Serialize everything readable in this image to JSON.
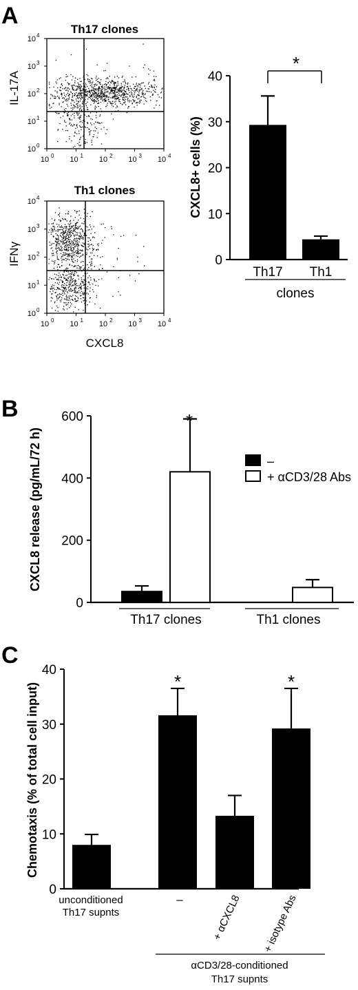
{
  "panels": {
    "A": {
      "letter": "A"
    },
    "B": {
      "letter": "B"
    },
    "C": {
      "letter": "C"
    }
  },
  "flow": {
    "th17": {
      "title": "Th17 clones",
      "ylabel": "IL-17A"
    },
    "th1": {
      "title": "Th1 clones",
      "ylabel": "IFNγ"
    },
    "xlabel": "CXCL8",
    "ticks": {
      "bases": [
        "10",
        "10",
        "10",
        "10",
        "10"
      ],
      "exps": [
        "0",
        "1",
        "2",
        "3",
        "4"
      ]
    }
  },
  "chart_data": [
    {
      "panel": "A",
      "type": "bar",
      "categories": [
        "Th17",
        "Th1"
      ],
      "values": [
        29.3,
        4.4
      ],
      "errors": [
        6.3,
        0.7
      ],
      "ylabel": "CXCL8+ cells (%)",
      "group_label": "clones",
      "ylim": [
        0,
        40
      ],
      "yticks": [
        0,
        10,
        20,
        30,
        40
      ],
      "significance": "*",
      "colors": [
        "#000000",
        "#000000"
      ]
    },
    {
      "panel": "B",
      "type": "bar",
      "groups": [
        "Th17 clones",
        "Th1 clones"
      ],
      "series": [
        {
          "name": "–",
          "values": [
            35,
            0
          ],
          "errors": [
            18,
            0
          ],
          "fill": "#000000"
        },
        {
          "name": "+ αCD3/28 Abs",
          "values": [
            420,
            48
          ],
          "errors": [
            170,
            25
          ],
          "fill": "#ffffff"
        }
      ],
      "ylabel": "CXCL8 release (pg/mL/72 h)",
      "ylim": [
        0,
        600
      ],
      "yticks": [
        0,
        200,
        400,
        600
      ],
      "significance": "*",
      "legend_position": "top-right"
    },
    {
      "panel": "C",
      "type": "bar",
      "categories": [
        "unconditioned Th17 supnts",
        "–",
        "+ αCXCL8",
        "+ isotype Abs"
      ],
      "values": [
        8,
        31.6,
        13.3,
        29.2
      ],
      "errors": [
        1.9,
        4.9,
        3.7,
        7.3
      ],
      "significant": [
        false,
        true,
        false,
        true
      ],
      "ylabel": "Chemotaxis (% of total cell input)",
      "ylim": [
        0,
        40
      ],
      "yticks": [
        0,
        10,
        20,
        30,
        40
      ],
      "group_label": "αCD3/28-conditioned Th17 supnts",
      "significance": "*"
    }
  ]
}
